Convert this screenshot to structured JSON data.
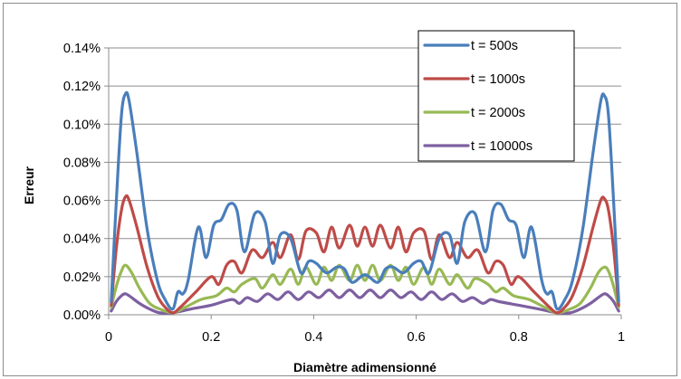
{
  "chart_data": {
    "type": "line",
    "xlabel": "Diamètre adimensionné",
    "ylabel": "Erreur",
    "xlim": [
      0,
      1
    ],
    "ylim": [
      0,
      0.14
    ],
    "x_ticks": [
      0,
      0.2,
      0.4,
      0.6,
      0.8,
      1
    ],
    "x_tick_labels": [
      "0",
      "0.2",
      "0.4",
      "0.6",
      "0.8",
      "1"
    ],
    "y_ticks": [
      0,
      0.02,
      0.04,
      0.06,
      0.08,
      0.1,
      0.12,
      0.14
    ],
    "y_tick_labels": [
      "0.00%",
      "0.02%",
      "0.04%",
      "0.06%",
      "0.08%",
      "0.10%",
      "0.12%",
      "0.14%"
    ],
    "y_unit": "%",
    "grid": "horizontal",
    "legend_position": "top-right",
    "series": [
      {
        "name": "t = 500s",
        "color": "#4a7ebb",
        "x": [
          0.005,
          0.015,
          0.025,
          0.033,
          0.04,
          0.055,
          0.075,
          0.095,
          0.11,
          0.125,
          0.135,
          0.145,
          0.155,
          0.175,
          0.19,
          0.205,
          0.22,
          0.235,
          0.25,
          0.265,
          0.285,
          0.305,
          0.32,
          0.335,
          0.355,
          0.375,
          0.39,
          0.405,
          0.425,
          0.445,
          0.46,
          0.475,
          0.5,
          0.525,
          0.54,
          0.555,
          0.575,
          0.595,
          0.61,
          0.625,
          0.645,
          0.665,
          0.68,
          0.695,
          0.715,
          0.735,
          0.75,
          0.765,
          0.78,
          0.795,
          0.81,
          0.825,
          0.845,
          0.855,
          0.865,
          0.875,
          0.89,
          0.905,
          0.925,
          0.945,
          0.96,
          0.967,
          0.975,
          0.985,
          0.995
        ],
        "y": [
          0.007,
          0.06,
          0.105,
          0.116,
          0.112,
          0.085,
          0.045,
          0.018,
          0.008,
          0.003,
          0.012,
          0.011,
          0.018,
          0.046,
          0.03,
          0.047,
          0.05,
          0.058,
          0.055,
          0.033,
          0.053,
          0.049,
          0.027,
          0.042,
          0.04,
          0.022,
          0.028,
          0.027,
          0.022,
          0.025,
          0.024,
          0.017,
          0.021,
          0.017,
          0.024,
          0.025,
          0.022,
          0.027,
          0.028,
          0.022,
          0.04,
          0.042,
          0.027,
          0.049,
          0.053,
          0.033,
          0.055,
          0.058,
          0.05,
          0.047,
          0.03,
          0.046,
          0.018,
          0.011,
          0.012,
          0.003,
          0.008,
          0.018,
          0.045,
          0.085,
          0.112,
          0.115,
          0.105,
          0.06,
          0.007
        ]
      },
      {
        "name": "t = 1000s",
        "color": "#be4b48",
        "x": [
          0.005,
          0.015,
          0.025,
          0.033,
          0.04,
          0.055,
          0.075,
          0.095,
          0.11,
          0.125,
          0.14,
          0.17,
          0.2,
          0.215,
          0.23,
          0.245,
          0.26,
          0.28,
          0.3,
          0.32,
          0.335,
          0.355,
          0.37,
          0.385,
          0.405,
          0.42,
          0.435,
          0.45,
          0.47,
          0.485,
          0.5,
          0.515,
          0.53,
          0.55,
          0.565,
          0.58,
          0.595,
          0.615,
          0.63,
          0.645,
          0.665,
          0.68,
          0.7,
          0.72,
          0.74,
          0.755,
          0.77,
          0.785,
          0.8,
          0.83,
          0.86,
          0.875,
          0.89,
          0.905,
          0.925,
          0.945,
          0.96,
          0.967,
          0.975,
          0.985,
          0.995
        ],
        "y": [
          0.005,
          0.035,
          0.055,
          0.062,
          0.06,
          0.046,
          0.025,
          0.01,
          0.004,
          0.001,
          0.004,
          0.012,
          0.02,
          0.016,
          0.026,
          0.028,
          0.022,
          0.034,
          0.03,
          0.038,
          0.03,
          0.042,
          0.029,
          0.044,
          0.043,
          0.033,
          0.046,
          0.035,
          0.047,
          0.036,
          0.046,
          0.036,
          0.047,
          0.035,
          0.046,
          0.033,
          0.043,
          0.044,
          0.029,
          0.042,
          0.03,
          0.038,
          0.03,
          0.034,
          0.022,
          0.028,
          0.026,
          0.016,
          0.02,
          0.012,
          0.004,
          0.001,
          0.004,
          0.01,
          0.025,
          0.046,
          0.06,
          0.061,
          0.055,
          0.035,
          0.005
        ]
      },
      {
        "name": "t = 2000s",
        "color": "#98b954",
        "x": [
          0.005,
          0.015,
          0.025,
          0.033,
          0.045,
          0.06,
          0.08,
          0.1,
          0.125,
          0.15,
          0.18,
          0.21,
          0.23,
          0.245,
          0.26,
          0.285,
          0.3,
          0.32,
          0.335,
          0.355,
          0.37,
          0.385,
          0.405,
          0.42,
          0.435,
          0.45,
          0.47,
          0.485,
          0.5,
          0.515,
          0.53,
          0.55,
          0.565,
          0.58,
          0.595,
          0.615,
          0.63,
          0.645,
          0.665,
          0.68,
          0.7,
          0.715,
          0.74,
          0.755,
          0.77,
          0.79,
          0.82,
          0.85,
          0.875,
          0.9,
          0.92,
          0.94,
          0.955,
          0.967,
          0.975,
          0.985,
          0.995
        ],
        "y": [
          0.004,
          0.015,
          0.023,
          0.026,
          0.022,
          0.014,
          0.006,
          0.003,
          0.001,
          0.004,
          0.008,
          0.01,
          0.014,
          0.012,
          0.016,
          0.019,
          0.014,
          0.021,
          0.016,
          0.024,
          0.016,
          0.025,
          0.016,
          0.025,
          0.018,
          0.026,
          0.018,
          0.026,
          0.018,
          0.026,
          0.018,
          0.026,
          0.018,
          0.025,
          0.016,
          0.025,
          0.016,
          0.024,
          0.016,
          0.021,
          0.014,
          0.019,
          0.016,
          0.012,
          0.014,
          0.01,
          0.008,
          0.004,
          0.001,
          0.003,
          0.006,
          0.014,
          0.022,
          0.025,
          0.023,
          0.015,
          0.004
        ]
      },
      {
        "name": "t = 10000s",
        "color": "#7d60a0",
        "x": [
          0.005,
          0.015,
          0.025,
          0.033,
          0.045,
          0.06,
          0.08,
          0.1,
          0.125,
          0.16,
          0.2,
          0.24,
          0.255,
          0.27,
          0.29,
          0.31,
          0.33,
          0.35,
          0.37,
          0.39,
          0.41,
          0.43,
          0.45,
          0.47,
          0.49,
          0.51,
          0.53,
          0.55,
          0.57,
          0.59,
          0.61,
          0.63,
          0.65,
          0.67,
          0.69,
          0.71,
          0.73,
          0.745,
          0.76,
          0.8,
          0.84,
          0.875,
          0.9,
          0.92,
          0.94,
          0.955,
          0.967,
          0.975,
          0.985,
          0.995
        ],
        "y": [
          0.002,
          0.007,
          0.01,
          0.011,
          0.009,
          0.006,
          0.003,
          0.001,
          0.001,
          0.003,
          0.005,
          0.008,
          0.006,
          0.009,
          0.007,
          0.011,
          0.008,
          0.012,
          0.008,
          0.012,
          0.009,
          0.013,
          0.009,
          0.013,
          0.009,
          0.013,
          0.009,
          0.013,
          0.009,
          0.012,
          0.008,
          0.012,
          0.008,
          0.011,
          0.007,
          0.009,
          0.006,
          0.008,
          0.007,
          0.005,
          0.003,
          0.001,
          0.001,
          0.003,
          0.006,
          0.009,
          0.011,
          0.01,
          0.007,
          0.002
        ]
      }
    ]
  }
}
